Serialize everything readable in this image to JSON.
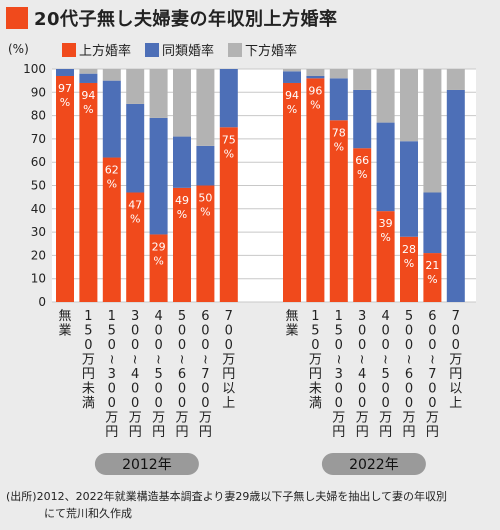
{
  "title": "20代子無し夫婦妻の年収別上方婚率",
  "unit_label": "(%)",
  "legend": [
    {
      "label": "上方婚率",
      "color": "#f04a1c"
    },
    {
      "label": "同類婚率",
      "color": "#4d6fb7"
    },
    {
      "label": "下方婚率",
      "color": "#b3b3b3"
    }
  ],
  "footer": {
    "line1": "(出所)2012、2022年就業構造基本調査より妻29歳以下子無し夫婦を抽出して妻の年収別",
    "line2": "にて荒川和久作成"
  },
  "chart_data": {
    "type": "bar",
    "stacked": true,
    "ylim": [
      0,
      100
    ],
    "yticks": [
      0,
      10,
      20,
      30,
      40,
      50,
      60,
      70,
      80,
      90,
      100
    ],
    "categories": [
      "無業",
      "150万円未満",
      "150~300万円",
      "300~400万円",
      "400~500万円",
      "500~600万円",
      "600~700万円",
      "700万円以上"
    ],
    "groups": [
      {
        "label": "2012年",
        "series": [
          {
            "name": "上方婚率",
            "values": [
              97,
              94,
              62,
              47,
              29,
              49,
              50,
              75
            ]
          },
          {
            "name": "同類婚率",
            "values": [
              3,
              4,
              33,
              38,
              50,
              22,
              17,
              25
            ]
          },
          {
            "name": "下方婚率",
            "values": [
              0,
              2,
              5,
              15,
              21,
              29,
              33,
              0
            ]
          }
        ],
        "data_labels": [
          "97%",
          "94%",
          "62%",
          "47%",
          "29%",
          "49%",
          "50%",
          "75%"
        ]
      },
      {
        "label": "2022年",
        "series": [
          {
            "name": "上方婚率",
            "values": [
              94,
              96,
              78,
              66,
              39,
              28,
              21,
              0
            ]
          },
          {
            "name": "同類婚率",
            "values": [
              5,
              1,
              18,
              25,
              38,
              41,
              26,
              91
            ]
          },
          {
            "name": "下方婚率",
            "values": [
              1,
              3,
              4,
              9,
              23,
              31,
              53,
              9
            ]
          }
        ],
        "data_labels": [
          "94%",
          "96%",
          "78%",
          "66%",
          "39%",
          "28%",
          "21%",
          ""
        ]
      }
    ]
  }
}
